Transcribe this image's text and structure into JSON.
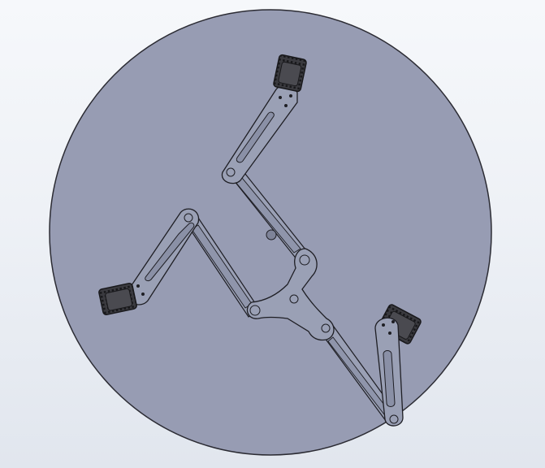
{
  "scene": {
    "description_colors": {
      "background_top": "#f6f8fb",
      "background_bottom": "#e1e6ee",
      "disc_fill": "#979cb3",
      "disc_edge": "#2b2b33",
      "part_fill": "#9aa0b5",
      "part_edge": "#1e1e24",
      "foot_fill": "#4a4a50",
      "foot_tread": "#2a2a2e"
    },
    "icons": {
      "base_plate": "circular-base-plate",
      "center_hub": "triangular-hub-link",
      "upper_arm": "slotted-arm-link",
      "gripper_pad": "treaded-foot-pad"
    }
  }
}
